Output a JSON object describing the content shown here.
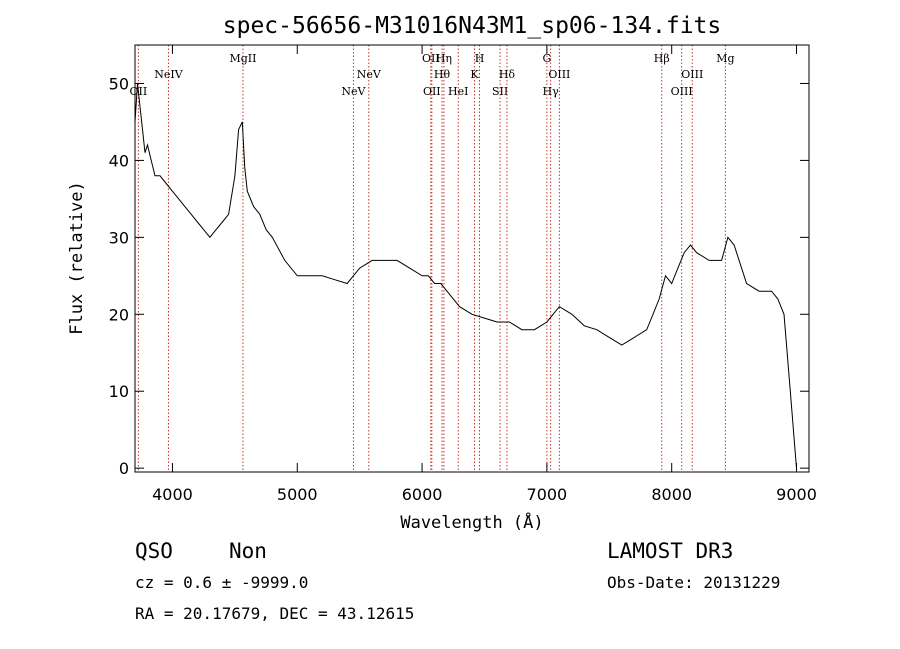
{
  "chart_data": {
    "type": "line",
    "title": "spec-56656-M31016N43M1_sp06-134.fits",
    "xlabel": "Wavelength (Å)",
    "ylabel": "Flux (relative)",
    "xlim": [
      3700,
      9100
    ],
    "ylim": [
      -0.5,
      55
    ],
    "xticks": [
      4000,
      5000,
      6000,
      7000,
      8000,
      9000
    ],
    "yticks": [
      0,
      10,
      20,
      30,
      40,
      50
    ],
    "series": [
      {
        "name": "spectrum",
        "x": [
          3700,
          3720,
          3740,
          3760,
          3780,
          3800,
          3830,
          3860,
          3900,
          3950,
          4000,
          4050,
          4100,
          4150,
          4200,
          4250,
          4300,
          4350,
          4400,
          4450,
          4500,
          4530,
          4560,
          4580,
          4600,
          4650,
          4700,
          4750,
          4800,
          4900,
          5000,
          5100,
          5200,
          5300,
          5400,
          5450,
          5500,
          5600,
          5700,
          5800,
          5900,
          6000,
          6050,
          6100,
          6150,
          6200,
          6300,
          6400,
          6500,
          6600,
          6700,
          6800,
          6900,
          7000,
          7050,
          7100,
          7200,
          7300,
          7400,
          7500,
          7600,
          7700,
          7800,
          7850,
          7900,
          7950,
          8000,
          8050,
          8100,
          8150,
          8200,
          8300,
          8400,
          8450,
          8500,
          8600,
          8700,
          8800,
          8850,
          8900,
          8950,
          9000
        ],
        "y": [
          45,
          50,
          47,
          44,
          41,
          42,
          40,
          38,
          38,
          37,
          36,
          35,
          34,
          33,
          32,
          31,
          30,
          31,
          32,
          33,
          38,
          44,
          45,
          39,
          36,
          34,
          33,
          31,
          30,
          27,
          25,
          25,
          25,
          24.5,
          24,
          25,
          26,
          27,
          27,
          27,
          26,
          25,
          25,
          24,
          24,
          23,
          21,
          20,
          19.5,
          19,
          19,
          18,
          18,
          19,
          20,
          21,
          20,
          18.5,
          18,
          17,
          16,
          17,
          18,
          20,
          22,
          25,
          24,
          26,
          28,
          29,
          28,
          27,
          27,
          30,
          29,
          24,
          23,
          23,
          22,
          20,
          10,
          0
        ]
      }
    ],
    "emission_lines": [
      {
        "label": "OII",
        "x": 3727,
        "row": 2
      },
      {
        "label": "NeIV",
        "x": 3968,
        "row": 1
      },
      {
        "label": "MgII",
        "x": 4565,
        "row": 0
      },
      {
        "label": "NeV",
        "x": 5450,
        "row": 2
      },
      {
        "label": "NeV",
        "x": 5573,
        "row": 1
      },
      {
        "label": "OII",
        "x": 6070,
        "row": 0
      },
      {
        "label": "OII",
        "x": 6078,
        "row": 2
      },
      {
        "label": "Hη",
        "x": 6175,
        "row": 0
      },
      {
        "label": "Hθ",
        "x": 6160,
        "row": 1
      },
      {
        "label": "HeI",
        "x": 6290,
        "row": 2
      },
      {
        "label": "K",
        "x": 6420,
        "row": 1
      },
      {
        "label": "H",
        "x": 6460,
        "row": 0
      },
      {
        "label": "SII",
        "x": 6625,
        "row": 2
      },
      {
        "label": "Hδ",
        "x": 6680,
        "row": 1
      },
      {
        "label": "G",
        "x": 7000,
        "row": 0
      },
      {
        "label": "Hγ",
        "x": 7030,
        "row": 2
      },
      {
        "label": "OIII",
        "x": 7100,
        "row": 1
      },
      {
        "label": "Hβ",
        "x": 7920,
        "row": 0
      },
      {
        "label": "OIII",
        "x": 8080,
        "row": 2
      },
      {
        "label": "OIII",
        "x": 8165,
        "row": 1
      },
      {
        "label": "Mg",
        "x": 8430,
        "row": 0
      }
    ]
  },
  "footer": {
    "class_label": "QSO",
    "subclass_label": "Non",
    "survey": "LAMOST DR3",
    "cz_text": "cz = 0.6 ± -9999.0",
    "obs_date": "Obs-Date: 20131229",
    "coords": "RA =  20.17679, DEC =  43.12615"
  }
}
